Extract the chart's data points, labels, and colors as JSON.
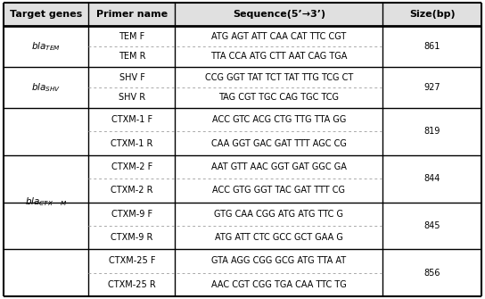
{
  "col_lefts": [
    4,
    100,
    197,
    430
  ],
  "col_rights": [
    99,
    196,
    429,
    540
  ],
  "header_bg": "#e0e0e0",
  "text_color": "#000000",
  "dashed_color": "#aaaaaa",
  "font_size": 7.0,
  "header_font_size": 8.0,
  "header": [
    "Target genes",
    "Primer name",
    "Sequence(5’→3’)",
    "Size(bp)"
  ],
  "tem": {
    "primers": [
      {
        "name": "TEM F",
        "seq": "ATG AGT ATT CAA CAT TTC CGT"
      },
      {
        "name": "TEM R",
        "seq": "TTA CCA ATG CTT AAT CAG TGA"
      }
    ],
    "size": "861"
  },
  "shv": {
    "primers": [
      {
        "name": "SHV F",
        "seq": "CCG GGT TAT TCT TAT TTG TCG CT"
      },
      {
        "name": "SHV R",
        "seq": "TAG CGT TGC CAG TGC TCG"
      }
    ],
    "size": "927"
  },
  "ctx": {
    "primer_groups": [
      {
        "f": {
          "name": "CTXM-1 F",
          "seq": "ACC GTC ACG CTG TTG TTA GG"
        },
        "r": {
          "name": "CTXM-1 R",
          "seq": "CAA GGT GAC GAT TTT AGC CG"
        },
        "size": "819"
      },
      {
        "f": {
          "name": "CTXM-2 F",
          "seq": "AAT GTT AAC GGT GAT GGC GA"
        },
        "r": {
          "name": "CTXM-2 R",
          "seq": "ACC GTG GGT TAC GAT TTT CG"
        },
        "size": "844"
      },
      {
        "f": {
          "name": "CTXM-9 F",
          "seq": "GTG CAA CGG ATG ATG TTC G"
        },
        "r": {
          "name": "CTXM-9 R",
          "seq": "ATG ATT CTC GCC GCT GAA G"
        },
        "size": "845"
      },
      {
        "f": {
          "name": "CTXM-25 F",
          "seq": "GTA AGG CGG GCG ATG TTA AT"
        },
        "r": {
          "name": "CTXM-25 R",
          "seq": "AAC CGT CGG TGA CAA TTC TG"
        },
        "size": "856"
      }
    ]
  }
}
